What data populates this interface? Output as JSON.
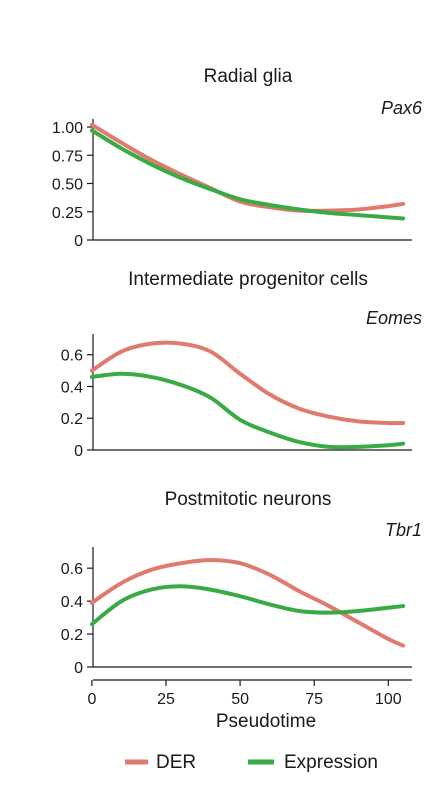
{
  "chart_data": [
    {
      "type": "line",
      "title": "Radial glia",
      "gene": "Pax6",
      "xlabel": "",
      "ylabel": "",
      "xlim": [
        -3,
        108
      ],
      "ylim": [
        0,
        1.0
      ],
      "yticks": [
        "1.00",
        "0.75",
        "0.50",
        "0.25",
        "0"
      ],
      "ytick_values": [
        1.0,
        0.75,
        0.5,
        0.25,
        0
      ],
      "series": [
        {
          "name": "DER",
          "x": [
            0,
            10,
            20,
            30,
            40,
            50,
            60,
            70,
            80,
            90,
            100,
            105
          ],
          "values": [
            1.02,
            0.86,
            0.71,
            0.58,
            0.46,
            0.34,
            0.29,
            0.26,
            0.26,
            0.27,
            0.3,
            0.32
          ]
        },
        {
          "name": "Expression",
          "x": [
            0,
            10,
            20,
            30,
            40,
            50,
            60,
            70,
            80,
            90,
            100,
            105
          ],
          "values": [
            0.97,
            0.81,
            0.67,
            0.55,
            0.45,
            0.36,
            0.31,
            0.27,
            0.24,
            0.22,
            0.2,
            0.19
          ]
        }
      ]
    },
    {
      "type": "line",
      "title": "Intermediate progenitor cells",
      "gene": "Eomes",
      "xlabel": "",
      "ylabel": "",
      "xlim": [
        -3,
        108
      ],
      "ylim": [
        0,
        0.68
      ],
      "yticks": [
        "0.6",
        "0.4",
        "0.2",
        "0"
      ],
      "ytick_values": [
        0.6,
        0.4,
        0.2,
        0
      ],
      "series": [
        {
          "name": "DER",
          "x": [
            0,
            10,
            20,
            30,
            40,
            50,
            60,
            70,
            80,
            90,
            100,
            105
          ],
          "values": [
            0.5,
            0.62,
            0.67,
            0.67,
            0.62,
            0.48,
            0.35,
            0.26,
            0.21,
            0.18,
            0.17,
            0.17
          ]
        },
        {
          "name": "Expression",
          "x": [
            0,
            10,
            20,
            30,
            40,
            50,
            60,
            70,
            80,
            90,
            100,
            105
          ],
          "values": [
            0.46,
            0.48,
            0.46,
            0.41,
            0.33,
            0.19,
            0.11,
            0.05,
            0.02,
            0.02,
            0.03,
            0.04
          ]
        }
      ]
    },
    {
      "type": "line",
      "title": "Postmitotic neurons",
      "gene": "Tbr1",
      "xlabel": "Pseudotime",
      "ylabel": "",
      "xlim": [
        -3,
        108
      ],
      "ylim": [
        0,
        0.68
      ],
      "xticks": [
        0,
        25,
        50,
        75,
        100
      ],
      "yticks": [
        "0.6",
        "0.4",
        "0.2",
        "0"
      ],
      "ytick_values": [
        0.6,
        0.4,
        0.2,
        0
      ],
      "series": [
        {
          "name": "DER",
          "x": [
            0,
            10,
            20,
            30,
            40,
            50,
            60,
            70,
            80,
            90,
            100,
            105
          ],
          "values": [
            0.39,
            0.51,
            0.59,
            0.63,
            0.65,
            0.63,
            0.56,
            0.46,
            0.37,
            0.27,
            0.17,
            0.13
          ]
        },
        {
          "name": "Expression",
          "x": [
            0,
            10,
            20,
            30,
            40,
            50,
            60,
            70,
            80,
            90,
            100,
            105
          ],
          "values": [
            0.26,
            0.4,
            0.47,
            0.49,
            0.47,
            0.43,
            0.38,
            0.34,
            0.33,
            0.34,
            0.36,
            0.37
          ]
        }
      ]
    }
  ],
  "legend": {
    "items": [
      {
        "label": "DER",
        "color": "#e07a6e"
      },
      {
        "label": "Expression",
        "color": "#3aaa44"
      }
    ],
    "placement": "bottom"
  },
  "colors": {
    "DER": "#e07a6e",
    "Expression": "#3aaa44",
    "axis": "#1a1a1a"
  }
}
